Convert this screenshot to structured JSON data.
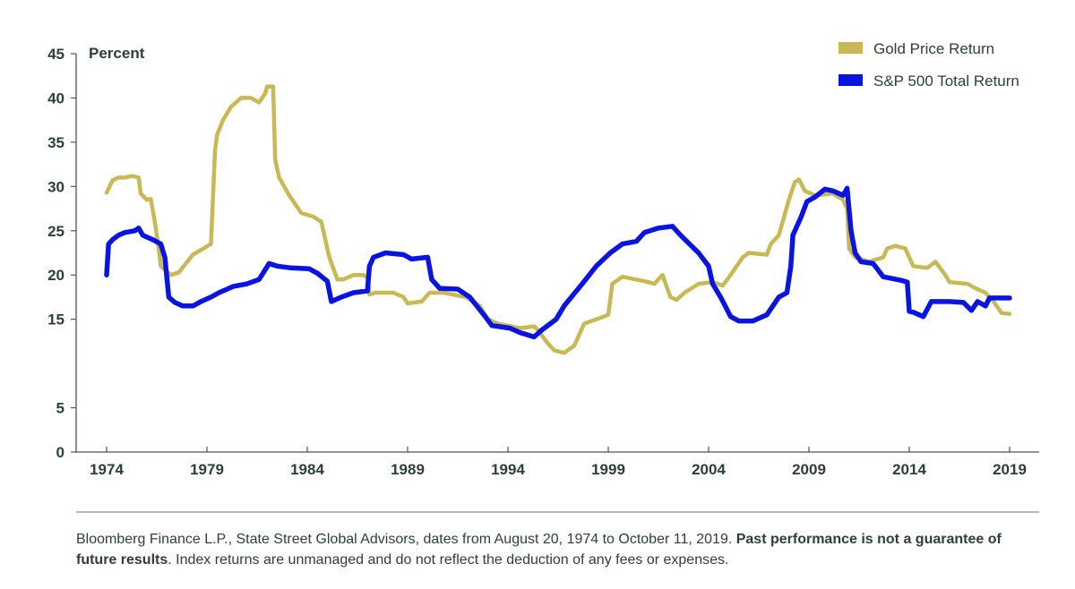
{
  "chart_data": {
    "type": "line",
    "title": "",
    "ylabel": "Percent",
    "xlabel": "",
    "xlim": [
      1974,
      2019
    ],
    "ylim": [
      0,
      45
    ],
    "x_ticks": [
      "1974",
      "1979",
      "1984",
      "1989",
      "1994",
      "1999",
      "2004",
      "2009",
      "2014",
      "2019"
    ],
    "y_ticks": [
      "0",
      "5",
      "15",
      "20",
      "25",
      "30",
      "35",
      "40",
      "45"
    ],
    "grid": false,
    "legend_position": "top-right",
    "series": [
      {
        "name": "Gold Price Return",
        "color": "#c8b955",
        "points": [
          [
            1974.0,
            29.3
          ],
          [
            1974.3,
            30.7
          ],
          [
            1974.6,
            31.0
          ],
          [
            1974.9,
            31.0
          ],
          [
            1975.25,
            31.2
          ],
          [
            1975.6,
            31.0
          ],
          [
            1975.7,
            29.2
          ],
          [
            1976.0,
            28.5
          ],
          [
            1976.2,
            28.6
          ],
          [
            1976.4,
            26.0
          ],
          [
            1976.6,
            23.0
          ],
          [
            1976.7,
            21.0
          ],
          [
            1977.2,
            20.0
          ],
          [
            1977.6,
            20.3
          ],
          [
            1978.3,
            22.3
          ],
          [
            1979.2,
            23.5
          ],
          [
            1979.4,
            34.0
          ],
          [
            1979.5,
            35.8
          ],
          [
            1979.8,
            37.5
          ],
          [
            1980.2,
            39.0
          ],
          [
            1980.7,
            40.0
          ],
          [
            1981.2,
            40.0
          ],
          [
            1981.6,
            39.5
          ],
          [
            1981.9,
            40.5
          ],
          [
            1982.0,
            41.3
          ],
          [
            1982.3,
            41.3
          ],
          [
            1982.4,
            33.0
          ],
          [
            1982.6,
            31.0
          ],
          [
            1983.1,
            29.0
          ],
          [
            1983.7,
            27.0
          ],
          [
            1984.3,
            26.6
          ],
          [
            1984.7,
            26.0
          ],
          [
            1984.8,
            25.0
          ],
          [
            1985.1,
            22.0
          ],
          [
            1985.5,
            19.5
          ],
          [
            1985.8,
            19.5
          ],
          [
            1986.3,
            20.0
          ],
          [
            1986.8,
            20.0
          ],
          [
            1987.0,
            19.7
          ],
          [
            1987.1,
            17.8
          ],
          [
            1987.4,
            18.0
          ],
          [
            1988.3,
            18.0
          ],
          [
            1988.8,
            17.5
          ],
          [
            1989.0,
            16.8
          ],
          [
            1989.7,
            17.0
          ],
          [
            1990.1,
            18.0
          ],
          [
            1990.8,
            18.0
          ],
          [
            1991.9,
            17.5
          ],
          [
            1992.6,
            16.5
          ],
          [
            1993.0,
            15.0
          ],
          [
            1993.5,
            14.5
          ],
          [
            1994.6,
            14.0
          ],
          [
            1995.3,
            14.2
          ],
          [
            1995.5,
            13.8
          ],
          [
            1995.9,
            12.5
          ],
          [
            1996.3,
            11.5
          ],
          [
            1996.8,
            11.2
          ],
          [
            1997.3,
            12.0
          ],
          [
            1997.5,
            13.0
          ],
          [
            1997.8,
            14.5
          ],
          [
            1998.4,
            15.0
          ],
          [
            1999.0,
            15.5
          ],
          [
            1999.2,
            19.0
          ],
          [
            1999.7,
            19.8
          ],
          [
            2000.8,
            19.3
          ],
          [
            2001.3,
            19.0
          ],
          [
            2001.7,
            20.0
          ],
          [
            2002.1,
            17.5
          ],
          [
            2002.4,
            17.2
          ],
          [
            2002.8,
            18.0
          ],
          [
            2003.5,
            19.0
          ],
          [
            2004.2,
            19.2
          ],
          [
            2004.7,
            18.8
          ],
          [
            2005.1,
            20.0
          ],
          [
            2005.7,
            22.0
          ],
          [
            2006.0,
            22.5
          ],
          [
            2006.9,
            22.3
          ],
          [
            2007.1,
            23.5
          ],
          [
            2007.5,
            24.5
          ],
          [
            2008.0,
            28.5
          ],
          [
            2008.3,
            30.5
          ],
          [
            2008.5,
            30.8
          ],
          [
            2008.8,
            29.5
          ],
          [
            2009.3,
            29.0
          ],
          [
            2010.2,
            29.2
          ],
          [
            2010.7,
            28.5
          ],
          [
            2010.9,
            27.5
          ],
          [
            2011.0,
            23.0
          ],
          [
            2011.3,
            22.0
          ],
          [
            2012.0,
            21.5
          ],
          [
            2012.7,
            22.0
          ],
          [
            2012.9,
            23.0
          ],
          [
            2013.3,
            23.3
          ],
          [
            2013.8,
            23.0
          ],
          [
            2014.2,
            21.0
          ],
          [
            2014.9,
            20.8
          ],
          [
            2015.3,
            21.5
          ],
          [
            2015.8,
            20.0
          ],
          [
            2016.0,
            19.2
          ],
          [
            2016.9,
            19.0
          ],
          [
            2017.3,
            18.5
          ],
          [
            2017.8,
            18.0
          ],
          [
            2018.2,
            17.0
          ],
          [
            2018.6,
            15.7
          ],
          [
            2019.0,
            15.6
          ]
        ]
      },
      {
        "name": "S&P 500 Total Return",
        "color": "#0a14e0",
        "points": [
          [
            1974.0,
            20.0
          ],
          [
            1974.1,
            23.5
          ],
          [
            1974.3,
            24.0
          ],
          [
            1974.6,
            24.5
          ],
          [
            1974.9,
            24.8
          ],
          [
            1975.4,
            25.0
          ],
          [
            1975.6,
            25.3
          ],
          [
            1975.8,
            24.5
          ],
          [
            1976.3,
            24.0
          ],
          [
            1976.7,
            23.5
          ],
          [
            1976.9,
            22.0
          ],
          [
            1977.1,
            17.5
          ],
          [
            1977.4,
            16.9
          ],
          [
            1977.8,
            16.5
          ],
          [
            1978.3,
            16.5
          ],
          [
            1978.7,
            17.0
          ],
          [
            1979.2,
            17.5
          ],
          [
            1979.6,
            18.0
          ],
          [
            1980.3,
            18.7
          ],
          [
            1981.0,
            19.0
          ],
          [
            1981.6,
            19.5
          ],
          [
            1982.1,
            21.3
          ],
          [
            1982.5,
            21.0
          ],
          [
            1983.2,
            20.8
          ],
          [
            1984.1,
            20.7
          ],
          [
            1984.5,
            20.2
          ],
          [
            1985.0,
            19.3
          ],
          [
            1985.2,
            17.0
          ],
          [
            1985.7,
            17.5
          ],
          [
            1986.3,
            18.0
          ],
          [
            1987.0,
            18.2
          ],
          [
            1987.1,
            21.0
          ],
          [
            1987.3,
            22.0
          ],
          [
            1987.9,
            22.5
          ],
          [
            1988.8,
            22.3
          ],
          [
            1989.2,
            21.8
          ],
          [
            1990.0,
            22.0
          ],
          [
            1990.2,
            19.5
          ],
          [
            1990.6,
            18.5
          ],
          [
            1991.5,
            18.4
          ],
          [
            1992.1,
            17.5
          ],
          [
            1992.8,
            15.5
          ],
          [
            1993.2,
            14.3
          ],
          [
            1994.1,
            14.0
          ],
          [
            1994.6,
            13.5
          ],
          [
            1995.3,
            13.0
          ],
          [
            1995.7,
            13.8
          ],
          [
            1996.4,
            15.0
          ],
          [
            1996.8,
            16.5
          ],
          [
            1997.7,
            19.0
          ],
          [
            1998.4,
            21.0
          ],
          [
            1999.1,
            22.5
          ],
          [
            1999.7,
            23.5
          ],
          [
            2000.4,
            23.8
          ],
          [
            2000.8,
            24.8
          ],
          [
            2001.5,
            25.3
          ],
          [
            2002.2,
            25.5
          ],
          [
            2002.6,
            24.5
          ],
          [
            2003.5,
            22.5
          ],
          [
            2004.0,
            21.0
          ],
          [
            2004.2,
            19.0
          ],
          [
            2004.6,
            17.5
          ],
          [
            2005.1,
            15.3
          ],
          [
            2005.5,
            14.8
          ],
          [
            2006.2,
            14.8
          ],
          [
            2006.9,
            15.5
          ],
          [
            2007.5,
            17.5
          ],
          [
            2007.9,
            18.0
          ],
          [
            2008.1,
            21.0
          ],
          [
            2008.2,
            24.5
          ],
          [
            2008.6,
            26.5
          ],
          [
            2008.9,
            28.3
          ],
          [
            2009.3,
            28.8
          ],
          [
            2009.8,
            29.7
          ],
          [
            2010.2,
            29.5
          ],
          [
            2010.7,
            29.0
          ],
          [
            2010.9,
            29.8
          ],
          [
            2011.1,
            25.0
          ],
          [
            2011.3,
            22.5
          ],
          [
            2011.6,
            21.5
          ],
          [
            2012.2,
            21.3
          ],
          [
            2012.7,
            19.8
          ],
          [
            2013.6,
            19.4
          ],
          [
            2013.9,
            19.2
          ],
          [
            2014.0,
            15.9
          ],
          [
            2014.2,
            15.8
          ],
          [
            2014.7,
            15.3
          ],
          [
            2015.1,
            17.0
          ],
          [
            2016.0,
            17.0
          ],
          [
            2016.7,
            16.9
          ],
          [
            2017.1,
            16.0
          ],
          [
            2017.4,
            17.0
          ],
          [
            2017.8,
            16.5
          ],
          [
            2018.0,
            17.4
          ],
          [
            2018.5,
            17.4
          ],
          [
            2019.0,
            17.4
          ]
        ]
      }
    ]
  },
  "footnote": {
    "part1": "Bloomberg Finance L.P., State Street Global Advisors, dates from August 20, 1974 to October 11, 2019. ",
    "bold": "Past performance is not a guarantee of future results",
    "part2": ". Index returns are unmanaged and do not reflect the deduction of any fees or expenses."
  },
  "colors": {
    "text": "#2d4036",
    "axis": "#4a5a50"
  }
}
